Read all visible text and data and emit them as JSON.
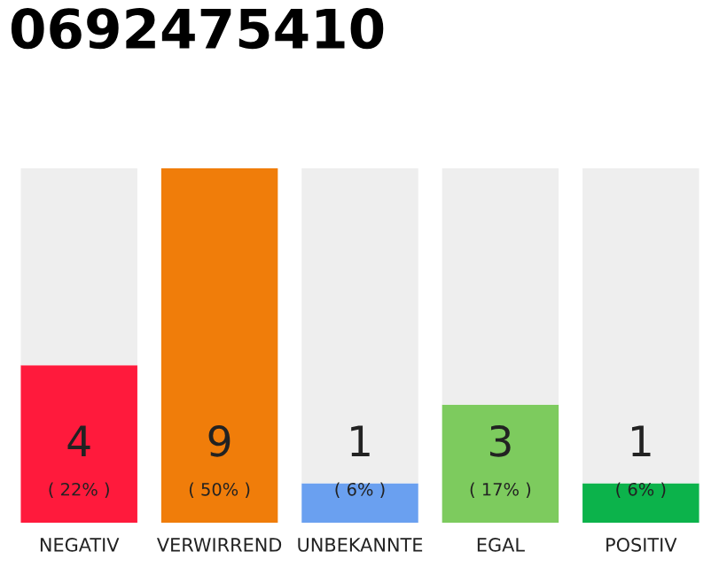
{
  "chart_data": {
    "type": "bar",
    "title": "0692475410",
    "stacked": true,
    "categories": [
      "NEGATIV",
      "VERWIRREND",
      "UNBEKANNTE",
      "EGAL",
      "POSITIV"
    ],
    "series": [
      {
        "colors": [
          "#ff1a3c",
          "#f07d0a",
          "#6aa0f0",
          "#7dcb5e",
          "#0cb34b"
        ],
        "values": [
          4,
          9,
          1,
          3,
          1
        ],
        "value_labels": [
          "4",
          "9",
          "1",
          "3",
          "1"
        ]
      },
      {
        "color": "#eeeeee",
        "values": [
          5,
          0,
          8,
          6,
          8
        ]
      }
    ],
    "annotations": [
      "( 22% )",
      "( 50% )",
      "( 6% )",
      "( 17% )",
      "( 6% )"
    ],
    "grid": false,
    "legend": false
  }
}
